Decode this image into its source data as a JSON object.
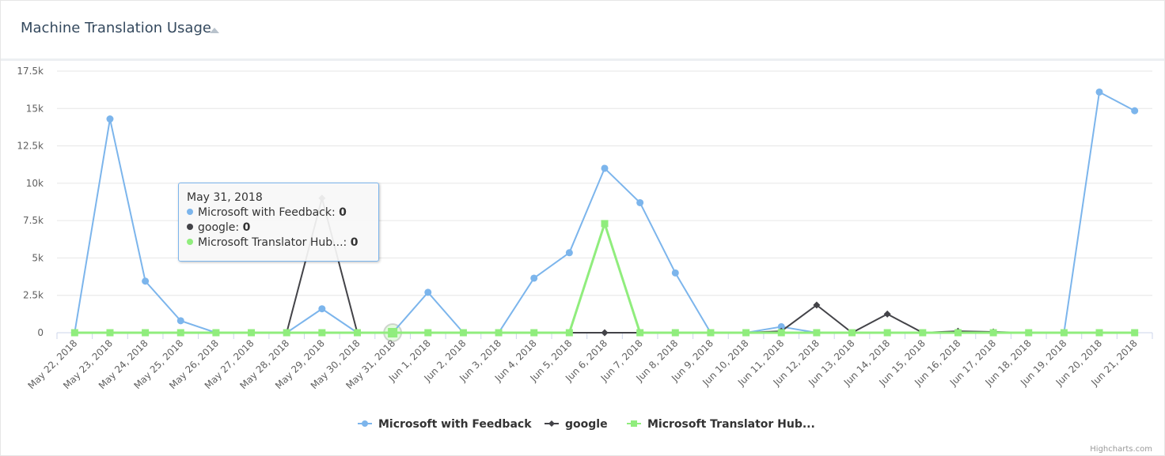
{
  "header": {
    "title": "Machine Translation Usage",
    "collapse_icon": "caret-up-icon"
  },
  "credits": "Highcharts.com",
  "tooltip": {
    "date": "May 31, 2018",
    "rows": [
      {
        "name": "Microsoft with Feedback",
        "value": "0",
        "color": "#7cb5ec"
      },
      {
        "name": "google",
        "value": "0",
        "color": "#434348"
      },
      {
        "name": "Microsoft Translator Hub...",
        "value": "0",
        "color": "#90ed7d"
      }
    ]
  },
  "chart_data": {
    "type": "line",
    "title": "",
    "xlabel": "",
    "ylabel": "",
    "ylim": [
      0,
      17500
    ],
    "yticks": [
      0,
      2500,
      5000,
      7500,
      10000,
      12500,
      15000,
      17500
    ],
    "ytick_labels": [
      "0",
      "2.5k",
      "5k",
      "7.5k",
      "10k",
      "12.5k",
      "15k",
      "17.5k"
    ],
    "grid": true,
    "legend_position": "bottom-center",
    "categories": [
      "May 22, 2018",
      "May 23, 2018",
      "May 24, 2018",
      "May 25, 2018",
      "May 26, 2018",
      "May 27, 2018",
      "May 28, 2018",
      "May 29, 2018",
      "May 30, 2018",
      "May 31, 2018",
      "Jun 1, 2018",
      "Jun 2, 2018",
      "Jun 3, 2018",
      "Jun 4, 2018",
      "Jun 5, 2018",
      "Jun 6, 2018",
      "Jun 7, 2018",
      "Jun 8, 2018",
      "Jun 9, 2018",
      "Jun 10, 2018",
      "Jun 11, 2018",
      "Jun 12, 2018",
      "Jun 13, 2018",
      "Jun 14, 2018",
      "Jun 15, 2018",
      "Jun 16, 2018",
      "Jun 17, 2018",
      "Jun 18, 2018",
      "Jun 19, 2018",
      "Jun 20, 2018",
      "Jun 21, 2018"
    ],
    "highlighted_category": "May 31, 2018",
    "series": [
      {
        "name": "Microsoft with Feedback",
        "color": "#7cb5ec",
        "marker": "circle",
        "values": [
          0,
          14300,
          3450,
          800,
          0,
          0,
          0,
          1600,
          0,
          0,
          2700,
          0,
          0,
          3650,
          5350,
          11000,
          8700,
          4000,
          0,
          0,
          400,
          0,
          0,
          0,
          0,
          0,
          0,
          0,
          0,
          16100,
          14850
        ]
      },
      {
        "name": "google",
        "color": "#434348",
        "marker": "diamond",
        "values": [
          0,
          0,
          0,
          0,
          0,
          0,
          0,
          9000,
          0,
          0,
          0,
          0,
          0,
          0,
          0,
          0,
          0,
          0,
          0,
          0,
          100,
          1850,
          0,
          1250,
          0,
          100,
          50,
          0,
          0,
          0,
          0
        ]
      },
      {
        "name": "Microsoft Translator Hub...",
        "color": "#90ed7d",
        "marker": "square",
        "values": [
          0,
          0,
          0,
          0,
          0,
          0,
          0,
          0,
          0,
          0,
          0,
          0,
          0,
          0,
          0,
          7300,
          0,
          0,
          0,
          0,
          0,
          0,
          0,
          0,
          0,
          0,
          0,
          0,
          0,
          0,
          0
        ]
      }
    ]
  }
}
